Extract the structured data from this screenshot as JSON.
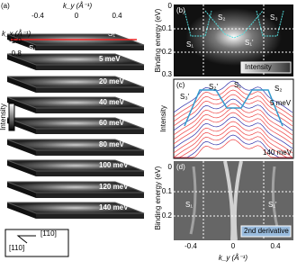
{
  "panel_a": {
    "label": "(a)",
    "x_axis_label": "k_y (Å⁻¹)",
    "x_ticks": [
      "-0.4",
      "0",
      "0.4"
    ],
    "y_axis_label": "k_x (Å⁻¹)",
    "y_ticks": [
      "-1.0",
      "-0.8"
    ],
    "state_labels": [
      "S₁",
      "S₁'"
    ],
    "energies": [
      "5 meV",
      "20 meV",
      "40 meV",
      "60 meV",
      "80 meV",
      "100 meV",
      "120 meV",
      "140 meV"
    ],
    "colorbar_label": "Intensity",
    "directions": [
      "[110]",
      "[1̄10]"
    ]
  },
  "panel_b": {
    "label": "(b)",
    "y_axis_label": "Binding energy (eV)",
    "y_ticks": [
      "0",
      "0.1",
      "0.2",
      "0.3"
    ],
    "state_labels": [
      "S₂",
      "S₃",
      "S₁",
      "S₁'"
    ],
    "colorbar_label": "Intensity"
  },
  "panel_c": {
    "label": "(c)",
    "y_axis_label": "Intensity",
    "state_labels": [
      "S₃'",
      "S₂'",
      "S₁",
      "S₂"
    ],
    "energy_labels": [
      "5 meV",
      "140 meV"
    ]
  },
  "panel_d": {
    "label": "(d)",
    "y_axis_label": "Binding energy (eV)",
    "y_ticks": [
      "0",
      "0.1",
      "0.2"
    ],
    "state_labels": [
      "S₁",
      "S₁'"
    ],
    "colorbar_label": "2nd derivative",
    "x_ticks": [
      "-0.4",
      "0",
      "0.4"
    ],
    "x_axis_label": "k_y (Å⁻¹)"
  }
}
